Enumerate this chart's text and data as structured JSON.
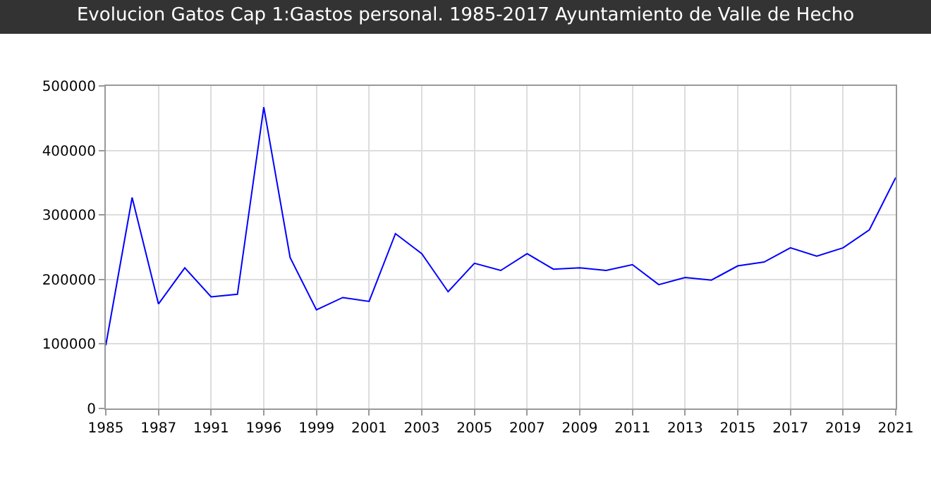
{
  "chart_data": {
    "type": "line",
    "title": "Evolucion Gatos Cap 1:Gastos personal. 1985-2017 Ayuntamiento de Valle de Hecho",
    "categories": [
      "1985",
      null,
      "1987",
      null,
      "1991",
      null,
      "1996",
      null,
      "1999",
      null,
      "2001",
      null,
      "2003",
      null,
      "2005",
      null,
      "2007",
      null,
      "2009",
      null,
      "2011",
      null,
      "2013",
      null,
      "2015",
      null,
      "2017",
      null,
      "2019",
      null,
      "2021"
    ],
    "series": [
      {
        "color": "#0000ff",
        "values": [
          98000,
          327000,
          162000,
          218000,
          173000,
          177000,
          467000,
          234000,
          153000,
          172000,
          166000,
          271000,
          240000,
          181000,
          225000,
          214000,
          240000,
          216000,
          218000,
          214000,
          223000,
          192000,
          203000,
          199000,
          221000,
          227000,
          249000,
          236000,
          249000,
          277000,
          358000
        ]
      }
    ],
    "ylim": [
      0,
      500000
    ],
    "yticks": [
      0,
      100000,
      200000,
      300000,
      400000,
      500000
    ],
    "grid": true,
    "marker": "none",
    "line_style": "solid"
  }
}
